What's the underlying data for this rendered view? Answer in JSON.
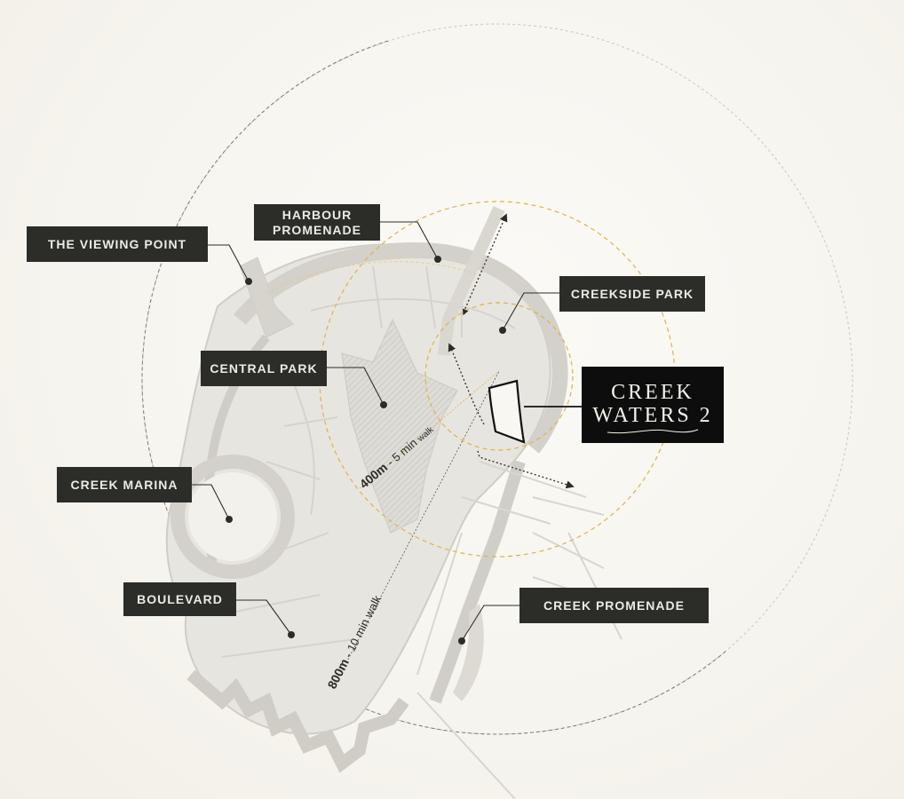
{
  "labels": {
    "viewing_point": "THE VIEWING POINT",
    "harbour_line1": "HARBOUR",
    "harbour_line2": "PROMENADE",
    "creekside_park": "CREEKSIDE PARK",
    "central_park": "CENTRAL PARK",
    "creek_marina": "CREEK MARINA",
    "boulevard": "BOULEVARD",
    "creek_promenade": "CREEK PROMENADE"
  },
  "logo": {
    "line1": "CREEK",
    "line2": "WATERS 2"
  },
  "distances": {
    "inner_distance": "400m",
    "inner_time": " - 5 min ",
    "inner_mode": "walk",
    "outer_distance": "800m",
    "outer_time": " - 10 min walk"
  },
  "colors": {
    "background": "#f8f7f2",
    "label_bg": "#2c2c28",
    "label_text": "#ecebe4",
    "logo_bg": "#0d0d0d",
    "ring_accent": "#e0b24a",
    "land": "#dcdad4",
    "outline": "#8a8a86"
  }
}
